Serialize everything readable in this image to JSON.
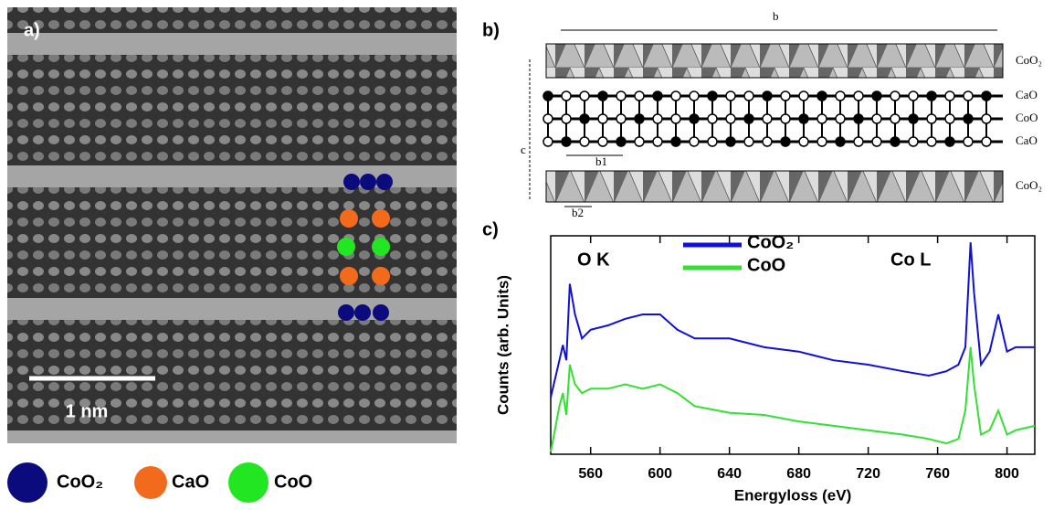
{
  "panel_a": {
    "label": "a)",
    "scale_bar": "1 nm",
    "legend": [
      {
        "name": "CoO₂",
        "color": "#0b0b7e"
      },
      {
        "name": "CaO",
        "color": "#f26b1d"
      },
      {
        "name": "CoO",
        "color": "#22e622"
      }
    ]
  },
  "panel_b": {
    "label": "b)",
    "axis_b": "b",
    "axis_c": "c",
    "b1": "b1",
    "b2": "b2",
    "layers": [
      "CoO₂",
      "CaO",
      "CoO",
      "CaO",
      "CoO₂"
    ]
  },
  "panel_c": {
    "label": "c)"
  },
  "chart_data": {
    "type": "line",
    "x_label": "Energyloss (eV)",
    "y_label": "Counts (arb. Units)",
    "annotations": [
      "O K",
      "Co L"
    ],
    "x": [
      537,
      542,
      544,
      546,
      548,
      551,
      555,
      560,
      570,
      580,
      590,
      600,
      610,
      620,
      640,
      660,
      680,
      700,
      720,
      740,
      755,
      765,
      772,
      776,
      779,
      781,
      785,
      790,
      795,
      800,
      805,
      816
    ],
    "series": [
      {
        "name": "CoO₂",
        "color": "#1010d8",
        "values": [
          26,
          43,
          50,
          43,
          78,
          64,
          53,
          57,
          59,
          62,
          64,
          64,
          57,
          53,
          53,
          49,
          47,
          43,
          41,
          38,
          36,
          38,
          41,
          49,
          97,
          74,
          41,
          47,
          64,
          47,
          49,
          49
        ]
      },
      {
        "name": "CoO",
        "color": "#33e033",
        "values": [
          1,
          22,
          28,
          18,
          41,
          32,
          28,
          30,
          30,
          32,
          30,
          32,
          28,
          22,
          19,
          18,
          15,
          13,
          11,
          9,
          7,
          5,
          7,
          20,
          49,
          32,
          9,
          11,
          20,
          9,
          11,
          13
        ]
      }
    ],
    "xlim": [
      537,
      816
    ],
    "xticks": [
      560,
      600,
      640,
      680,
      720,
      760,
      800
    ],
    "ylim": [
      0,
      100
    ]
  }
}
